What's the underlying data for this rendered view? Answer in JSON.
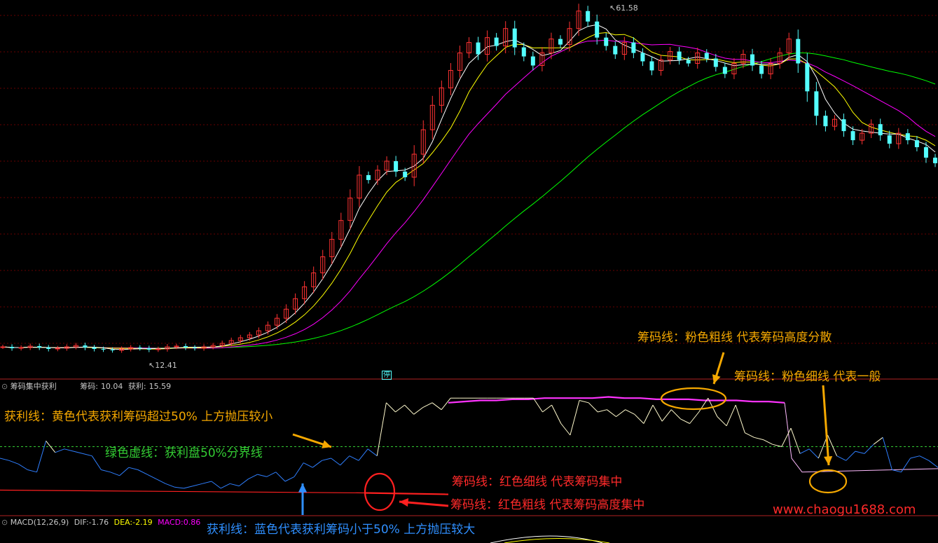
{
  "price_panel": {
    "high_label": "61.58",
    "low_label": "12.41",
    "limit_tag": "停"
  },
  "indicator_panel": {
    "title": "筹码集中获利",
    "chip_label": "筹码:",
    "chip_value": "10.04",
    "profit_label": "获利:",
    "profit_value": "15.59"
  },
  "macd_panel": {
    "title": "MACD(12,26,9)",
    "dif_label": "DIF:",
    "dif_value": "-1.76",
    "dea_label": "DEA:",
    "dea_value": "-2.19",
    "macd_label": "MACD:",
    "macd_value": "0.86"
  },
  "annotations": {
    "pink_thick": "筹码线：粉色粗线 代表筹码高度分散",
    "pink_thin": "筹码线：粉色细线 代表一般",
    "yellow_profit": "获利线：黄色代表获利筹码超过50% 上方抛压较小",
    "green_dashed": "绿色虚线：获利盘50%分界线",
    "red_thin": "筹码线：红色细线 代表筹码集中",
    "red_thick": "筹码线：红色粗线 代表筹码高度集中",
    "blue_profit": "获利线：蓝色代表获利筹码小于50% 上方抛压较大",
    "watermark": "www.chaogu1688.com"
  },
  "colors": {
    "up": "#ff3232",
    "down": "#54ffff",
    "ma5": "#ffffff",
    "ma10": "#ffff00",
    "ma20": "#ff00ff",
    "ma60": "#00ff00",
    "grid": "#8b0000",
    "annotation_orange": "#f5a800",
    "annotation_red": "#ff2a2a",
    "annotation_green": "#33cc33",
    "annotation_blue": "#2f8fff"
  },
  "chart_data": {
    "type": "line",
    "close_price_path": [
      12.9,
      12.7,
      12.8,
      13.0,
      12.8,
      12.6,
      12.7,
      12.9,
      13.1,
      12.8,
      12.6,
      12.5,
      12.4,
      12.6,
      12.8,
      12.7,
      12.5,
      12.6,
      12.9,
      13.0,
      12.8,
      12.7,
      12.9,
      13.1,
      13.4,
      13.8,
      14.2,
      14.6,
      15.2,
      16.0,
      17.0,
      18.3,
      19.8,
      21.5,
      23.5,
      25.8,
      28.3,
      31.0,
      34.2,
      37.5,
      36.8,
      38.2,
      39.5,
      38.0,
      37.2,
      40.5,
      44.0,
      47.5,
      50.0,
      52.5,
      55.0,
      56.5,
      54.8,
      57.2,
      56.0,
      58.5,
      55.8,
      54.5,
      53.2,
      55.0,
      57.0,
      56.2,
      58.5,
      61.0,
      59.5,
      57.2,
      56.0,
      54.8,
      56.5,
      55.0,
      53.8,
      52.5,
      54.0,
      55.2,
      54.0,
      53.5,
      55.0,
      54.2,
      53.0,
      52.0,
      53.5,
      54.8,
      53.2,
      52.0,
      53.5,
      55.0,
      57.0,
      53.5,
      49.5,
      46.0,
      44.5,
      45.5,
      43.8,
      42.5,
      43.5,
      44.8,
      43.2,
      42.0,
      43.5,
      42.5,
      41.5,
      40.0,
      39.2
    ],
    "profit_line_pct": [
      40,
      38,
      35,
      30,
      28,
      55,
      45,
      48,
      46,
      44,
      42,
      30,
      28,
      25,
      32,
      30,
      26,
      22,
      18,
      15,
      14,
      16,
      18,
      20,
      14,
      18,
      16,
      22,
      26,
      24,
      28,
      20,
      24,
      36,
      32,
      38,
      40,
      34,
      42,
      38,
      48,
      42,
      88,
      80,
      86,
      78,
      84,
      88,
      82,
      92,
      92,
      92,
      92,
      92,
      92,
      92,
      92,
      92,
      92,
      80,
      86,
      70,
      60,
      90,
      88,
      80,
      82,
      76,
      82,
      78,
      70,
      86,
      72,
      82,
      74,
      70,
      80,
      92,
      76,
      68,
      86,
      62,
      58,
      56,
      52,
      50,
      66,
      44,
      48,
      40,
      60,
      42,
      38,
      46,
      44,
      52,
      58,
      30,
      28,
      40,
      42,
      38,
      32
    ],
    "threshold_pct": 50,
    "chip_line": {
      "left_phase": 10,
      "right_phase_pink_rising": [
        88,
        89,
        90,
        90,
        91,
        91,
        92,
        92,
        92,
        92,
        93,
        92,
        92,
        91,
        91,
        91,
        90,
        90,
        90,
        89,
        89,
        88
      ],
      "tail_pink_thin": 28
    },
    "series": [
      {
        "name": "筹码",
        "values": [
          10.04
        ]
      },
      {
        "name": "获利",
        "values": [
          15.59
        ]
      }
    ],
    "price_markers": {
      "high": 61.58,
      "low": 12.41
    },
    "macd": {
      "dif": -1.76,
      "dea": -2.19,
      "macd": 0.86
    }
  }
}
